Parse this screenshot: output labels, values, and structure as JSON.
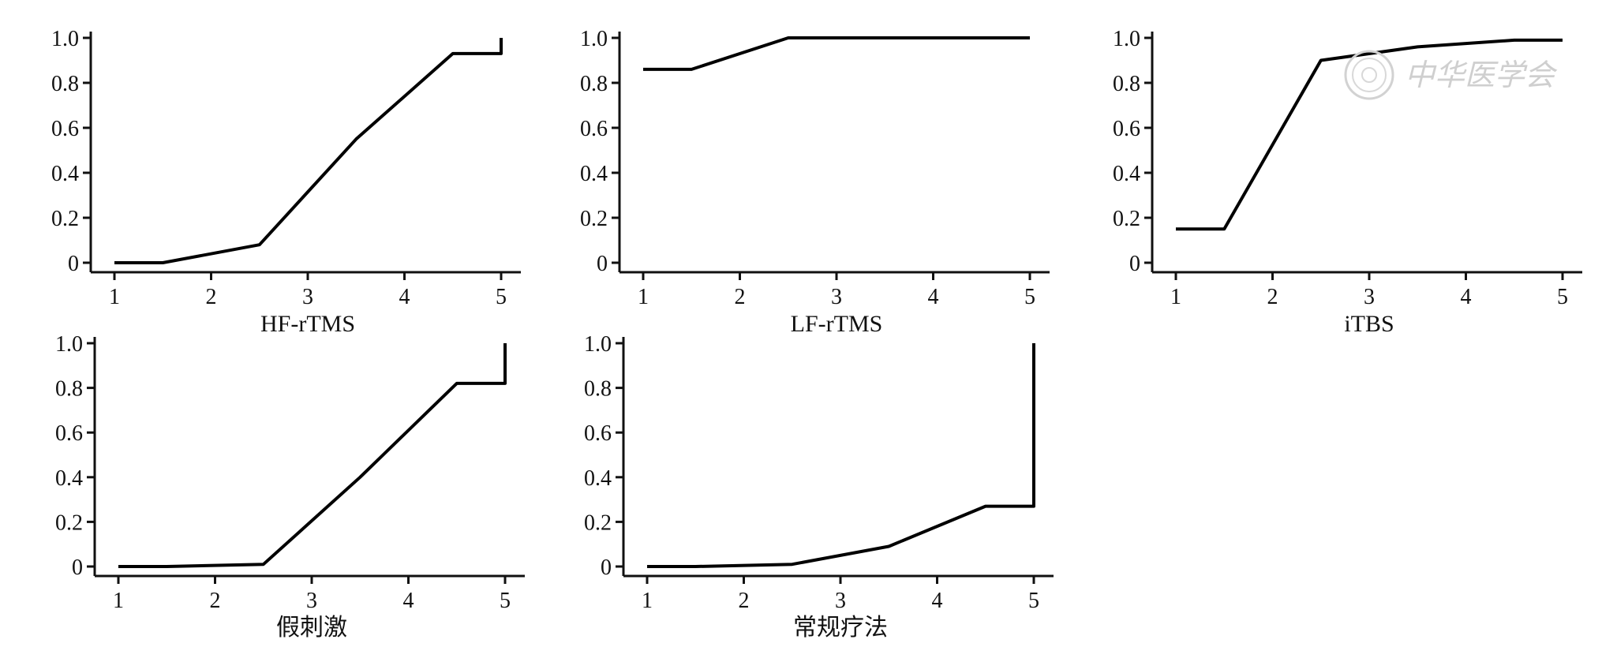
{
  "watermark": {
    "text": "中华医学会",
    "icon": "seal-icon"
  },
  "chart_data": [
    {
      "type": "line",
      "xlabel": "HF-rTMS",
      "xticks": [
        1,
        2,
        3,
        4,
        5
      ],
      "yticks": [
        "0",
        "0.2",
        "0.4",
        "0.6",
        "0.8",
        "1.0"
      ],
      "xlim": [
        1,
        5
      ],
      "ylim": [
        0,
        1
      ],
      "x": [
        1,
        1.5,
        2.5,
        3.5,
        4.5,
        5,
        5
      ],
      "y": [
        0.0,
        0.0,
        0.08,
        0.55,
        0.93,
        0.93,
        1.0
      ]
    },
    {
      "type": "line",
      "xlabel": "LF-rTMS",
      "xticks": [
        1,
        2,
        3,
        4,
        5
      ],
      "yticks": [
        "0",
        "0.2",
        "0.4",
        "0.6",
        "0.8",
        "1.0"
      ],
      "xlim": [
        1,
        5
      ],
      "ylim": [
        0,
        1
      ],
      "x": [
        1,
        1.5,
        2.5,
        3.5,
        4.5,
        5
      ],
      "y": [
        0.86,
        0.86,
        1.0,
        1.0,
        1.0,
        1.0
      ]
    },
    {
      "type": "line",
      "xlabel": "iTBS",
      "xticks": [
        1,
        2,
        3,
        4,
        5
      ],
      "yticks": [
        "0",
        "0.2",
        "0.4",
        "0.6",
        "0.8",
        "1.0"
      ],
      "xlim": [
        1,
        5
      ],
      "ylim": [
        0,
        1
      ],
      "x": [
        1,
        1.5,
        2.5,
        3.5,
        4.5,
        5
      ],
      "y": [
        0.15,
        0.15,
        0.9,
        0.96,
        0.99,
        0.99
      ]
    },
    {
      "type": "line",
      "xlabel": "假刺激",
      "xticks": [
        1,
        2,
        3,
        4,
        5
      ],
      "yticks": [
        "0",
        "0.2",
        "0.4",
        "0.6",
        "0.8",
        "1.0"
      ],
      "xlim": [
        1,
        5
      ],
      "ylim": [
        0,
        1
      ],
      "x": [
        1,
        1.5,
        2.5,
        3.5,
        4.5,
        5,
        5
      ],
      "y": [
        0.0,
        0.0,
        0.01,
        0.4,
        0.82,
        0.82,
        1.0
      ]
    },
    {
      "type": "line",
      "xlabel": "常规疗法",
      "xticks": [
        1,
        2,
        3,
        4,
        5
      ],
      "yticks": [
        "0",
        "0.2",
        "0.4",
        "0.6",
        "0.8",
        "1.0"
      ],
      "xlim": [
        1,
        5
      ],
      "ylim": [
        0,
        1
      ],
      "x": [
        1,
        1.5,
        2.5,
        3.5,
        4.5,
        5,
        5
      ],
      "y": [
        0.0,
        0.0,
        0.01,
        0.09,
        0.27,
        0.27,
        1.0
      ]
    }
  ]
}
